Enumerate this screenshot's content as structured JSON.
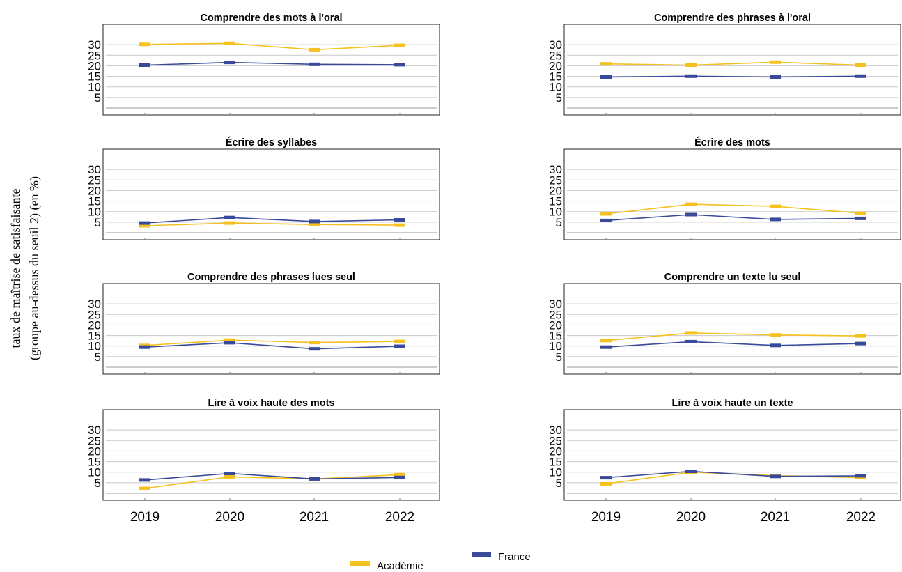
{
  "chart_data": {
    "type": "line",
    "ylabel_lines": [
      "taux de maîtrise de satisfaisante",
      "(groupe au-dessus du seuil 2) (en %)"
    ],
    "x": [
      "2019",
      "2020",
      "2021",
      "2022"
    ],
    "yticks": [
      5,
      10,
      15,
      20,
      25,
      30
    ],
    "ylim": [
      0,
      35
    ],
    "grid": true,
    "legend": {
      "placement": "bottom-center",
      "items": [
        {
          "name": "Académie",
          "color": "#f5c11e"
        },
        {
          "name": "France",
          "color": "#3a4a9a"
        }
      ]
    },
    "panels": [
      {
        "title": "Comprendre des mots à l'oral",
        "series": [
          {
            "name": "Académie",
            "values": [
              30.1,
              30.6,
              27.6,
              29.7
            ]
          },
          {
            "name": "France",
            "values": [
              20.3,
              21.6,
              20.7,
              20.5
            ]
          }
        ]
      },
      {
        "title": "Comprendre des phrases à l'oral",
        "series": [
          {
            "name": "Académie",
            "values": [
              20.9,
              20.3,
              21.7,
              20.3
            ]
          },
          {
            "name": "France",
            "values": [
              14.7,
              15.1,
              14.7,
              15.1
            ]
          }
        ]
      },
      {
        "title": "Écrire des syllabes",
        "series": [
          {
            "name": "Académie",
            "values": [
              3.3,
              4.6,
              3.9,
              3.6
            ]
          },
          {
            "name": "France",
            "values": [
              4.6,
              7.2,
              5.3,
              6.1
            ]
          }
        ]
      },
      {
        "title": "Écrire des mots",
        "series": [
          {
            "name": "Académie",
            "values": [
              8.9,
              13.5,
              12.5,
              9.2
            ]
          },
          {
            "name": "France",
            "values": [
              5.8,
              8.6,
              6.3,
              6.8
            ]
          }
        ]
      },
      {
        "title": "Comprendre des phrases lues seul",
        "series": [
          {
            "name": "Académie",
            "values": [
              10.3,
              12.8,
              11.7,
              12.2
            ]
          },
          {
            "name": "France",
            "values": [
              9.5,
              11.6,
              8.7,
              9.9
            ]
          }
        ]
      },
      {
        "title": "Comprendre un texte lu seul",
        "series": [
          {
            "name": "Académie",
            "values": [
              12.6,
              16.2,
              15.3,
              14.8
            ]
          },
          {
            "name": "France",
            "values": [
              9.5,
              12.1,
              10.3,
              11.2
            ]
          }
        ]
      },
      {
        "title": "Lire à voix haute des mots",
        "series": [
          {
            "name": "Académie",
            "values": [
              2.3,
              7.8,
              6.8,
              8.8
            ]
          },
          {
            "name": "France",
            "values": [
              6.3,
              9.4,
              6.8,
              7.5
            ]
          }
        ]
      },
      {
        "title": "Lire à voix haute un texte",
        "series": [
          {
            "name": "Académie",
            "values": [
              4.5,
              10.0,
              8.4,
              7.4
            ]
          },
          {
            "name": "France",
            "values": [
              7.4,
              10.4,
              8.0,
              8.3
            ]
          }
        ]
      }
    ]
  }
}
